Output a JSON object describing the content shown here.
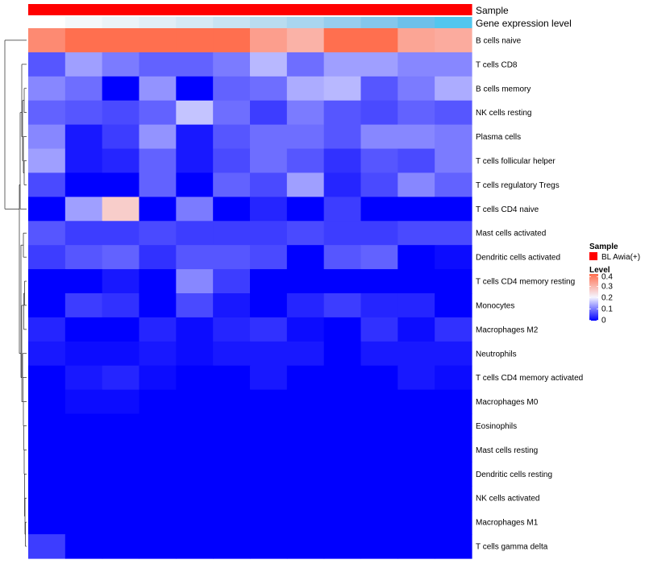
{
  "chart_data": {
    "type": "heatmap",
    "annotation_tracks": [
      "Sample",
      "Gene expression level"
    ],
    "rows": [
      "B cells naive",
      "T cells CD8",
      "B cells memory",
      "NK cells resting",
      "Plasma cells",
      "T cells follicular helper",
      "T cells regulatory  Tregs",
      "T cells CD4 naive",
      "Mast cells activated",
      "Dendritic cells activated",
      "T cells CD4 memory resting",
      "Monocytes",
      "Macrophages M2",
      "Neutrophils",
      "T cells CD4 memory activated",
      "Macrophages M0",
      "Eosinophils",
      "Mast cells resting",
      "Dendritic cells resting",
      "NK cells activated",
      "Macrophages M1",
      "T cells gamma delta"
    ],
    "columns": 12,
    "values": [
      [
        0.36,
        0.45,
        0.44,
        0.4,
        0.46,
        0.46,
        0.33,
        0.3,
        0.4,
        0.44,
        0.32,
        0.31
      ],
      [
        0.07,
        0.13,
        0.1,
        0.08,
        0.08,
        0.1,
        0.15,
        0.09,
        0.13,
        0.13,
        0.11,
        0.11
      ],
      [
        0.11,
        0.09,
        0.0,
        0.12,
        0.0,
        0.08,
        0.09,
        0.14,
        0.15,
        0.07,
        0.1,
        0.14
      ],
      [
        0.08,
        0.07,
        0.06,
        0.08,
        0.16,
        0.09,
        0.05,
        0.1,
        0.07,
        0.06,
        0.08,
        0.07
      ],
      [
        0.11,
        0.02,
        0.05,
        0.12,
        0.02,
        0.07,
        0.09,
        0.09,
        0.07,
        0.11,
        0.11,
        0.1
      ],
      [
        0.13,
        0.02,
        0.03,
        0.08,
        0.02,
        0.06,
        0.09,
        0.07,
        0.04,
        0.07,
        0.06,
        0.1
      ],
      [
        0.06,
        0.0,
        0.0,
        0.08,
        0.0,
        0.08,
        0.06,
        0.13,
        0.03,
        0.06,
        0.11,
        0.08
      ],
      [
        0.0,
        0.13,
        0.26,
        0.0,
        0.1,
        0.0,
        0.03,
        0.0,
        0.05,
        0.0,
        0.0,
        0.0
      ],
      [
        0.07,
        0.05,
        0.05,
        0.06,
        0.05,
        0.05,
        0.05,
        0.06,
        0.05,
        0.05,
        0.06,
        0.06
      ],
      [
        0.05,
        0.07,
        0.08,
        0.04,
        0.07,
        0.07,
        0.06,
        0.0,
        0.07,
        0.08,
        0.0,
        0.01
      ],
      [
        0.0,
        0.0,
        0.02,
        0.0,
        0.11,
        0.05,
        0.0,
        0.0,
        0.0,
        0.0,
        0.0,
        0.0
      ],
      [
        0.0,
        0.05,
        0.04,
        0.0,
        0.06,
        0.02,
        0.0,
        0.03,
        0.05,
        0.03,
        0.03,
        0.0
      ],
      [
        0.03,
        0.0,
        0.0,
        0.03,
        0.01,
        0.03,
        0.04,
        0.01,
        0.0,
        0.04,
        0.01,
        0.04
      ],
      [
        0.02,
        0.01,
        0.01,
        0.02,
        0.01,
        0.02,
        0.02,
        0.02,
        0.0,
        0.02,
        0.02,
        0.02
      ],
      [
        0.0,
        0.02,
        0.03,
        0.01,
        0.0,
        0.0,
        0.02,
        0.0,
        0.0,
        0.0,
        0.02,
        0.01
      ],
      [
        0.0,
        0.01,
        0.01,
        0.0,
        0.0,
        0.0,
        0.0,
        0.0,
        0.0,
        0.0,
        0.0,
        0.0
      ],
      [
        0.0,
        0.0,
        0.0,
        0.0,
        0.0,
        0.0,
        0.0,
        0.0,
        0.0,
        0.0,
        0.0,
        0.0
      ],
      [
        0.0,
        0.0,
        0.0,
        0.0,
        0.0,
        0.0,
        0.0,
        0.0,
        0.0,
        0.0,
        0.0,
        0.0
      ],
      [
        0.0,
        0.0,
        0.0,
        0.0,
        0.0,
        0.0,
        0.0,
        0.0,
        0.0,
        0.0,
        0.0,
        0.0
      ],
      [
        0.0,
        0.0,
        0.0,
        0.0,
        0.0,
        0.0,
        0.0,
        0.0,
        0.0,
        0.0,
        0.0,
        0.0
      ],
      [
        0.0,
        0.0,
        0.0,
        0.0,
        0.0,
        0.0,
        0.0,
        0.0,
        0.0,
        0.0,
        0.0,
        0.0
      ],
      [
        0.05,
        0.0,
        0.0,
        0.0,
        0.0,
        0.0,
        0.0,
        0.0,
        0.0,
        0.0,
        0.0,
        0.0
      ]
    ],
    "sample_annotation": {
      "colors": [
        "#ff0000",
        "#ff0000",
        "#ff0000",
        "#ff0000",
        "#ff0000",
        "#ff0000",
        "#ff0000",
        "#ff0000",
        "#ff0000",
        "#ff0000",
        "#ff0000",
        "#ff0000"
      ]
    },
    "expression_annotation": {
      "colors": [
        "#ffffff",
        "#f4f8fb",
        "#ebf3f8",
        "#e1eef6",
        "#d5e9f4",
        "#c8e3f2",
        "#b9dcf0",
        "#a9d5ef",
        "#97cded",
        "#84c6ec",
        "#6cc0ea",
        "#52c6ee"
      ]
    },
    "legend": {
      "sample_title": "Sample",
      "sample_entries": [
        {
          "label": "BL Awia(+)",
          "color": "#ff0000"
        }
      ],
      "level_title": "Level",
      "level_ticks": [
        "0.4",
        "0.3",
        "0.2",
        "0.1",
        "0"
      ],
      "scale": {
        "min": 0,
        "max": 0.4,
        "low_color": "#0000ff",
        "mid_color": "#f5f5ff",
        "high_color": "#ff6f4f",
        "mid_value": 0.2
      }
    },
    "grid": false,
    "legend_placement": "right"
  }
}
